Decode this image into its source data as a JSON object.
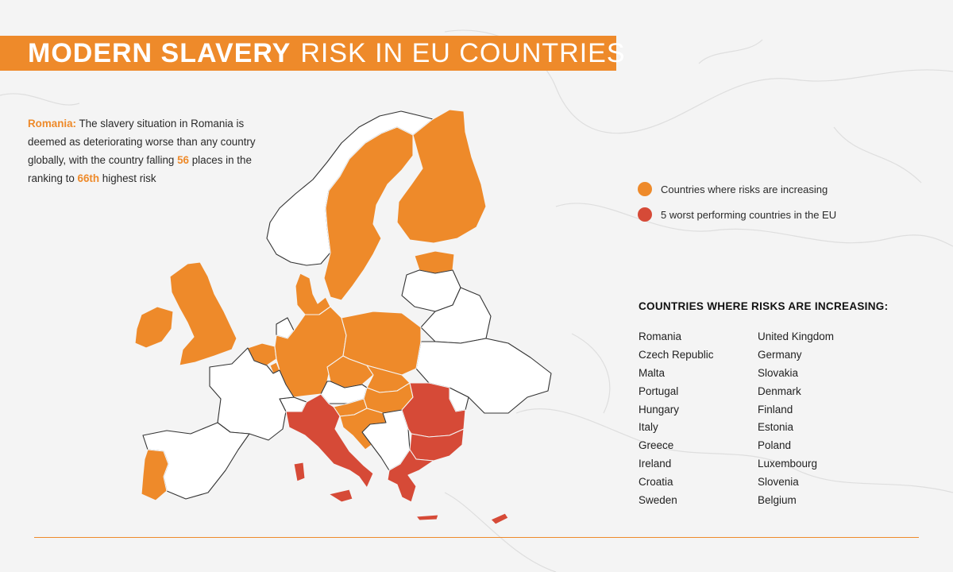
{
  "title": {
    "bold": "MODERN SLAVERY",
    "light": "RISK IN EU COUNTRIES"
  },
  "note": {
    "country": "Romania:",
    "text1": " The slavery situation in Romania is deemed as deteriorating worse than any country globally, with the country falling ",
    "places": "56",
    "text2": " places in the ranking to ",
    "rank": "66th",
    "text3": " highest risk"
  },
  "legend": [
    {
      "label": "Countries where risks are increasing",
      "color": "#ee8a2a"
    },
    {
      "label": "5 worst performing countries in the EU",
      "color": "#d64a37"
    }
  ],
  "list": {
    "title": "COUNTRIES WHERE RISKS ARE INCREASING:",
    "col1": [
      "Romania",
      "Czech Republic",
      "Malta",
      "Portugal",
      "Hungary",
      "Italy",
      "Greece",
      "Ireland",
      "Croatia",
      "Sweden"
    ],
    "col2": [
      "United Kingdom",
      "Germany",
      "Slovakia",
      "Denmark",
      "Finland",
      "Estonia",
      "Poland",
      "Luxembourg",
      "Slovenia",
      "Belgium"
    ]
  },
  "colors": {
    "increasing": "#ee8a2a",
    "worst": "#d64a37",
    "neutral": "#ffffff",
    "outline": "#333333"
  },
  "map_regions": [
    {
      "name": "sweden",
      "status": "increasing"
    },
    {
      "name": "finland",
      "status": "increasing"
    },
    {
      "name": "estonia",
      "status": "increasing"
    },
    {
      "name": "united-kingdom",
      "status": "increasing"
    },
    {
      "name": "ireland",
      "status": "increasing"
    },
    {
      "name": "denmark",
      "status": "increasing"
    },
    {
      "name": "germany",
      "status": "increasing"
    },
    {
      "name": "poland",
      "status": "increasing"
    },
    {
      "name": "czech-republic",
      "status": "increasing"
    },
    {
      "name": "slovakia",
      "status": "increasing"
    },
    {
      "name": "hungary",
      "status": "increasing"
    },
    {
      "name": "slovenia",
      "status": "increasing"
    },
    {
      "name": "croatia",
      "status": "increasing"
    },
    {
      "name": "belgium",
      "status": "increasing"
    },
    {
      "name": "luxembourg",
      "status": "increasing"
    },
    {
      "name": "portugal",
      "status": "increasing"
    },
    {
      "name": "italy",
      "status": "worst"
    },
    {
      "name": "sardinia",
      "status": "worst"
    },
    {
      "name": "sicily",
      "status": "worst"
    },
    {
      "name": "greece",
      "status": "worst"
    },
    {
      "name": "crete",
      "status": "worst"
    },
    {
      "name": "cyprus",
      "status": "worst"
    },
    {
      "name": "romania",
      "status": "worst"
    },
    {
      "name": "bulgaria",
      "status": "worst"
    },
    {
      "name": "norway",
      "status": "neutral"
    },
    {
      "name": "france",
      "status": "neutral"
    },
    {
      "name": "spain",
      "status": "neutral"
    },
    {
      "name": "switzerland",
      "status": "neutral"
    },
    {
      "name": "austria",
      "status": "neutral"
    },
    {
      "name": "balkans",
      "status": "neutral"
    },
    {
      "name": "baltics",
      "status": "neutral"
    },
    {
      "name": "belarus",
      "status": "neutral"
    },
    {
      "name": "ukraine",
      "status": "neutral"
    },
    {
      "name": "moldova",
      "status": "neutral"
    },
    {
      "name": "netherlands",
      "status": "neutral"
    }
  ]
}
